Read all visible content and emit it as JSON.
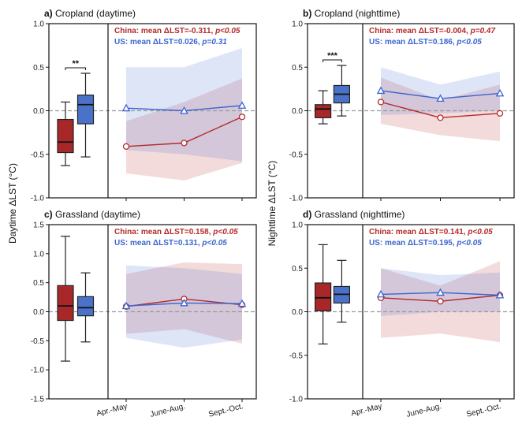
{
  "figure": {
    "ylabel_day": "Daytime ΔLST (°C)",
    "ylabel_night": "Nighttime ΔLST (°C)"
  },
  "chart_data": [
    {
      "type": "box+line",
      "panel": "a",
      "title": "Cropland (daytime)",
      "ylim": [
        -1.0,
        1.0
      ],
      "yticks": [
        "1.0",
        "0.5",
        "0.0",
        "-0.5",
        "-1.0"
      ],
      "categories": [
        "Apr.-May",
        "June-Aug.",
        "Sept.-Oct."
      ],
      "show_xlabels": false,
      "china_label": "China: mean ΔLST=-0.311, ",
      "china_p": "p<0.05",
      "us_label": "US: mean ΔLST=0.026, ",
      "us_p": "p=0.31",
      "significance": "**",
      "boxes": [
        {
          "name": "China",
          "color": "#a8282a",
          "whisker_low": -0.63,
          "q1": -0.48,
          "median": -0.36,
          "q3": -0.1,
          "whisker_high": 0.1
        },
        {
          "name": "US",
          "color": "#4a72c8",
          "whisker_low": -0.53,
          "q1": -0.15,
          "median": 0.07,
          "q3": 0.18,
          "whisker_high": 0.43
        }
      ],
      "series": [
        {
          "name": "China",
          "color": "#b52a2a",
          "marker": "circle",
          "values": [
            -0.41,
            -0.37,
            -0.07
          ],
          "band_low": [
            -0.72,
            -0.8,
            -0.6
          ],
          "band_high": [
            -0.12,
            0.1,
            0.37
          ]
        },
        {
          "name": "US",
          "color": "#3a65d0",
          "marker": "triangle",
          "values": [
            0.03,
            0.0,
            0.06
          ],
          "band_low": [
            -0.45,
            -0.5,
            -0.58
          ],
          "band_high": [
            0.5,
            0.5,
            0.72
          ]
        }
      ]
    },
    {
      "type": "box+line",
      "panel": "b",
      "title": "Cropland (nighttime)",
      "ylim": [
        -1.0,
        1.0
      ],
      "yticks": [
        "1.0",
        "0.5",
        "0.0",
        "-0.5",
        "-1.0"
      ],
      "categories": [
        "Apr.-May",
        "June-Aug.",
        "Sept.-Oct."
      ],
      "show_xlabels": false,
      "china_label": "China: mean ΔLST=-0.004, ",
      "china_p": "p=0.47",
      "us_label": "US: mean ΔLST=0.186, ",
      "us_p": "p<0.05",
      "significance": "***",
      "boxes": [
        {
          "name": "China",
          "color": "#a8282a",
          "whisker_low": -0.15,
          "q1": -0.08,
          "median": 0.02,
          "q3": 0.07,
          "whisker_high": 0.23
        },
        {
          "name": "US",
          "color": "#4a72c8",
          "whisker_low": -0.06,
          "q1": 0.09,
          "median": 0.19,
          "q3": 0.29,
          "whisker_high": 0.52
        }
      ],
      "series": [
        {
          "name": "China",
          "color": "#b52a2a",
          "marker": "circle",
          "values": [
            0.1,
            -0.08,
            -0.03
          ],
          "band_low": [
            -0.15,
            -0.28,
            -0.35
          ],
          "band_high": [
            0.38,
            0.12,
            0.3
          ]
        },
        {
          "name": "US",
          "color": "#3a65d0",
          "marker": "triangle",
          "values": [
            0.23,
            0.14,
            0.2
          ],
          "band_low": [
            -0.05,
            -0.03,
            0.0
          ],
          "band_high": [
            0.5,
            0.3,
            0.45
          ]
        }
      ]
    },
    {
      "type": "box+line",
      "panel": "c",
      "title": "Grassland (daytime)",
      "ylim": [
        -1.5,
        1.5
      ],
      "yticks": [
        "1.5",
        "1.0",
        "0.5",
        "0.0",
        "-0.5",
        "-1.0",
        "-1.5"
      ],
      "categories": [
        "Apr.-May",
        "June-Aug.",
        "Sept.-Oct."
      ],
      "show_xlabels": true,
      "china_label": "China: mean ΔLST=0.158, ",
      "china_p": "p<0.05",
      "us_label": "US: mean ΔLST=0.131, ",
      "us_p": "p<0.05",
      "significance": "",
      "boxes": [
        {
          "name": "China",
          "color": "#a8282a",
          "whisker_low": -0.85,
          "q1": -0.15,
          "median": 0.1,
          "q3": 0.45,
          "whisker_high": 1.3
        },
        {
          "name": "US",
          "color": "#4a72c8",
          "whisker_low": -0.52,
          "q1": -0.07,
          "median": 0.07,
          "q3": 0.26,
          "whisker_high": 0.67
        }
      ],
      "series": [
        {
          "name": "China",
          "color": "#b52a2a",
          "marker": "circle",
          "values": [
            0.09,
            0.22,
            0.12
          ],
          "band_low": [
            -0.38,
            -0.3,
            -0.55
          ],
          "band_high": [
            0.65,
            0.85,
            0.82
          ]
        },
        {
          "name": "US",
          "color": "#3a65d0",
          "marker": "triangle",
          "values": [
            0.1,
            0.15,
            0.14
          ],
          "band_low": [
            -0.45,
            -0.62,
            -0.48
          ],
          "band_high": [
            0.8,
            0.75,
            0.65
          ]
        }
      ]
    },
    {
      "type": "box+line",
      "panel": "d",
      "title": "Grassland (nighttime)",
      "ylim": [
        -1.0,
        1.0
      ],
      "yticks": [
        "1.0",
        "0.5",
        "0.0",
        "-0.5",
        "-1.0"
      ],
      "categories": [
        "Apr.-May",
        "June-Aug.",
        "Sept.-Oct."
      ],
      "show_xlabels": true,
      "china_label": "China: mean ΔLST=0.141, ",
      "china_p": "p<0.05",
      "us_label": "US: mean ΔLST=0.195, ",
      "us_p": "p<0.05",
      "significance": "",
      "boxes": [
        {
          "name": "China",
          "color": "#a8282a",
          "whisker_low": -0.37,
          "q1": 0.01,
          "median": 0.16,
          "q3": 0.33,
          "whisker_high": 0.77
        },
        {
          "name": "US",
          "color": "#4a72c8",
          "whisker_low": -0.12,
          "q1": 0.1,
          "median": 0.2,
          "q3": 0.29,
          "whisker_high": 0.59
        }
      ],
      "series": [
        {
          "name": "China",
          "color": "#b52a2a",
          "marker": "circle",
          "values": [
            0.16,
            0.12,
            0.19
          ],
          "band_low": [
            -0.3,
            -0.25,
            -0.35
          ],
          "band_high": [
            0.5,
            0.3,
            0.58
          ]
        },
        {
          "name": "US",
          "color": "#3a65d0",
          "marker": "triangle",
          "values": [
            0.2,
            0.22,
            0.19
          ],
          "band_low": [
            -0.05,
            0.0,
            0.0
          ],
          "band_high": [
            0.5,
            0.42,
            0.45
          ]
        }
      ]
    }
  ]
}
